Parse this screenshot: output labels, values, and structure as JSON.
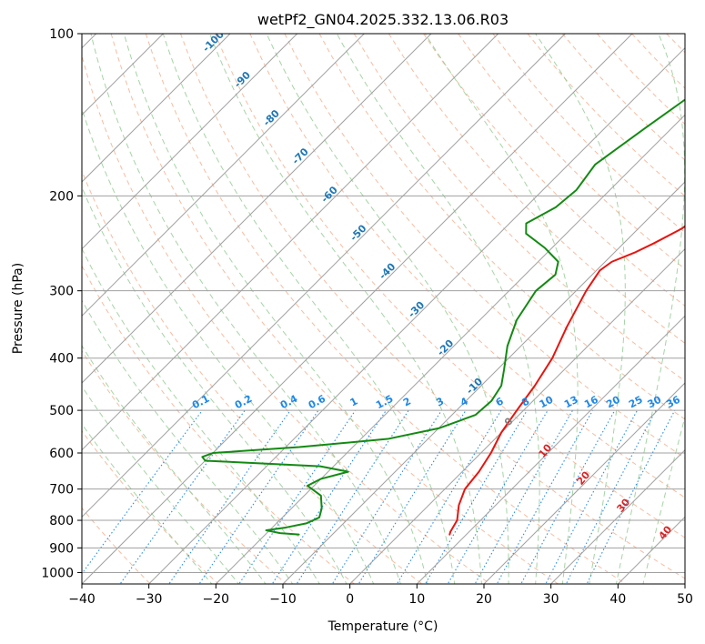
{
  "chart_data": {
    "type": "line",
    "title": "wetPf2_GN04.2025.332.13.06.R03",
    "xlabel": "Temperature (°C)",
    "ylabel": "Pressure (hPa)",
    "xlim": [
      -40,
      50
    ],
    "ylim": [
      1050,
      100
    ],
    "y_scale": "log",
    "x_ticks": [
      -40,
      -30,
      -20,
      -10,
      0,
      10,
      20,
      30,
      40,
      50
    ],
    "x_tick_labels": [
      "−40",
      "−30",
      "−20",
      "−10",
      "0",
      "10",
      "20",
      "30",
      "40",
      "50"
    ],
    "y_ticks": [
      100,
      200,
      300,
      400,
      500,
      600,
      700,
      800,
      900,
      1000
    ],
    "y_tick_labels": [
      "100",
      "200",
      "300",
      "400",
      "500",
      "600",
      "700",
      "800",
      "900",
      "1000"
    ],
    "grid": true,
    "isotherm_skew_deg": 45,
    "series": [
      {
        "role": "temperature",
        "color": "#e8140f",
        "points": [
          {
            "p": 850,
            "t": 7.5
          },
          {
            "p": 840,
            "t": 7.2
          },
          {
            "p": 800,
            "t": 6.5
          },
          {
            "p": 750,
            "t": 4.5
          },
          {
            "p": 700,
            "t": 3.0
          },
          {
            "p": 650,
            "t": 2.5
          },
          {
            "p": 600,
            "t": 1.5
          },
          {
            "p": 550,
            "t": 0.0
          },
          {
            "p": 500,
            "t": -1.0
          },
          {
            "p": 450,
            "t": -2.0
          },
          {
            "p": 400,
            "t": -3.5
          },
          {
            "p": 350,
            "t": -6.0
          },
          {
            "p": 300,
            "t": -8.5
          },
          {
            "p": 275,
            "t": -9.5
          },
          {
            "p": 265,
            "t": -9.0
          },
          {
            "p": 255,
            "t": -7.0
          },
          {
            "p": 245,
            "t": -5.5
          },
          {
            "p": 230,
            "t": -3.5
          },
          {
            "p": 200,
            "t": -2.0
          },
          {
            "p": 180,
            "t": -1.5
          },
          {
            "p": 160,
            "t": -1.2
          },
          {
            "p": 140,
            "t": -1.0
          },
          {
            "p": 120,
            "t": -0.5
          },
          {
            "p": 100,
            "t": 0.0
          }
        ]
      },
      {
        "role": "dewpoint",
        "color": "#138a13",
        "points": [
          {
            "p": 850,
            "t": -15.0
          },
          {
            "p": 845,
            "t": -18.0
          },
          {
            "p": 835,
            "t": -20.5
          },
          {
            "p": 825,
            "t": -18.0
          },
          {
            "p": 810,
            "t": -15.5
          },
          {
            "p": 790,
            "t": -14.5
          },
          {
            "p": 760,
            "t": -15.5
          },
          {
            "p": 720,
            "t": -17.5
          },
          {
            "p": 690,
            "t": -21.0
          },
          {
            "p": 670,
            "t": -20.0
          },
          {
            "p": 650,
            "t": -17.0
          },
          {
            "p": 635,
            "t": -22.0
          },
          {
            "p": 620,
            "t": -40.0
          },
          {
            "p": 610,
            "t": -41.0
          },
          {
            "p": 600,
            "t": -40.0
          },
          {
            "p": 585,
            "t": -28.0
          },
          {
            "p": 565,
            "t": -16.0
          },
          {
            "p": 540,
            "t": -10.0
          },
          {
            "p": 510,
            "t": -6.5
          },
          {
            "p": 480,
            "t": -6.2
          },
          {
            "p": 450,
            "t": -7.0
          },
          {
            "p": 420,
            "t": -9.0
          },
          {
            "p": 380,
            "t": -12.0
          },
          {
            "p": 340,
            "t": -14.5
          },
          {
            "p": 300,
            "t": -16.0
          },
          {
            "p": 280,
            "t": -15.5
          },
          {
            "p": 265,
            "t": -17.0
          },
          {
            "p": 250,
            "t": -21.0
          },
          {
            "p": 235,
            "t": -26.0
          },
          {
            "p": 225,
            "t": -27.5
          },
          {
            "p": 210,
            "t": -25.5
          },
          {
            "p": 195,
            "t": -25.0
          },
          {
            "p": 175,
            "t": -26.0
          },
          {
            "p": 150,
            "t": -24.0
          },
          {
            "p": 130,
            "t": -22.0
          },
          {
            "p": 115,
            "t": -20.5
          },
          {
            "p": 100,
            "t": -19.5
          }
        ]
      }
    ],
    "mixing_ratio_labels": [
      "0.1",
      "0.2",
      "0.4",
      "0.6",
      "1",
      "1.5",
      "2",
      "3",
      "4",
      "6",
      "8",
      "10",
      "13",
      "16",
      "20",
      "25",
      "30",
      "36"
    ],
    "mixing_ratio_values": [
      0.1,
      0.2,
      0.4,
      0.6,
      1,
      1.5,
      2,
      3,
      4,
      6,
      8,
      10,
      13,
      16,
      20,
      25,
      30,
      36
    ],
    "mixing_ratio_color": "#1e88e5",
    "dry_adiabat_labels": [
      "-100",
      "-90",
      "-80",
      "-70",
      "-60",
      "-50",
      "-40",
      "-30",
      "-20",
      "-10"
    ],
    "dry_adiabat_label_color": "#1f77b4",
    "moist_adiabat_labels": [
      "0",
      "10",
      "20",
      "30",
      "40"
    ],
    "moist_adiabat_zero_color": "#808080",
    "moist_adiabat_label_color": "#d62728",
    "colors": {
      "dry_adiabat": "#f4a582",
      "moist_adiabat": "#8fc98f",
      "tan_curve": "#d8bb8f",
      "isotherm": "#a0a0a0",
      "isobar": "#a0a0a0"
    }
  }
}
